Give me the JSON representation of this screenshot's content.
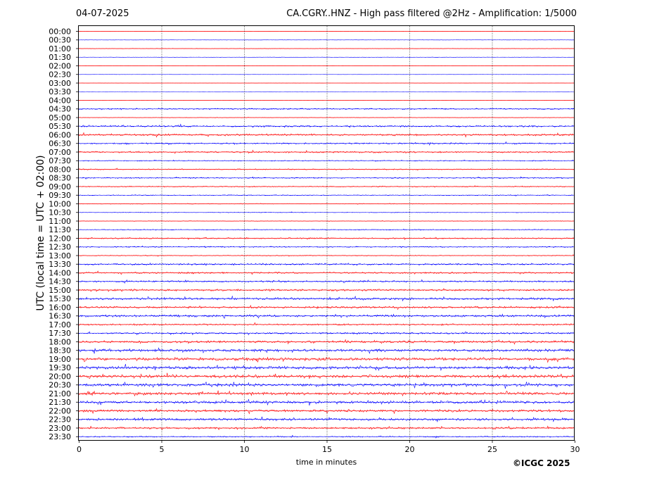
{
  "header": {
    "date": "04-07-2025",
    "title": "CA.CGRY..HNZ - High pass filtered @2Hz - Amplification: 1/5000"
  },
  "footer": {
    "copyright": "©ICGC 2025"
  },
  "chart_data": {
    "type": "line",
    "title": "CA.CGRY..HNZ - High pass filtered @2Hz - Amplification: 1/5000",
    "xlabel": "time in minutes",
    "ylabel": "UTC (local time = UTC + 02:00)",
    "xlim": [
      0,
      30
    ],
    "xticks": [
      0,
      5,
      10,
      15,
      20,
      25,
      30
    ],
    "vertical_gridlines": [
      5,
      10,
      15,
      20,
      25
    ],
    "grid": "dotted vertical",
    "trace_colors": [
      "#ff0000",
      "#0000ff"
    ],
    "rows": [
      "00:00",
      "00:30",
      "01:00",
      "01:30",
      "02:00",
      "02:30",
      "03:00",
      "03:30",
      "04:00",
      "04:30",
      "05:00",
      "05:30",
      "06:00",
      "06:30",
      "07:00",
      "07:30",
      "08:00",
      "08:30",
      "09:00",
      "09:30",
      "10:00",
      "10:30",
      "11:00",
      "11:30",
      "12:00",
      "12:30",
      "13:00",
      "13:30",
      "14:00",
      "14:30",
      "15:00",
      "15:30",
      "16:00",
      "16:30",
      "17:00",
      "17:30",
      "18:00",
      "18:30",
      "19:00",
      "19:30",
      "20:00",
      "20:30",
      "21:00",
      "21:30",
      "22:00",
      "22:30",
      "23:00",
      "23:30"
    ],
    "amplitudes": [
      0.05,
      0.05,
      0.08,
      0.05,
      0.02,
      0.02,
      0.02,
      0.02,
      0.05,
      0.25,
      0.1,
      0.3,
      0.35,
      0.25,
      0.3,
      0.15,
      0.2,
      0.2,
      0.2,
      0.15,
      0.15,
      0.1,
      0.1,
      0.15,
      0.25,
      0.2,
      0.15,
      0.3,
      0.3,
      0.3,
      0.35,
      0.4,
      0.35,
      0.4,
      0.3,
      0.3,
      0.4,
      0.5,
      0.55,
      0.55,
      0.55,
      0.55,
      0.5,
      0.5,
      0.45,
      0.45,
      0.35,
      0.2
    ]
  }
}
